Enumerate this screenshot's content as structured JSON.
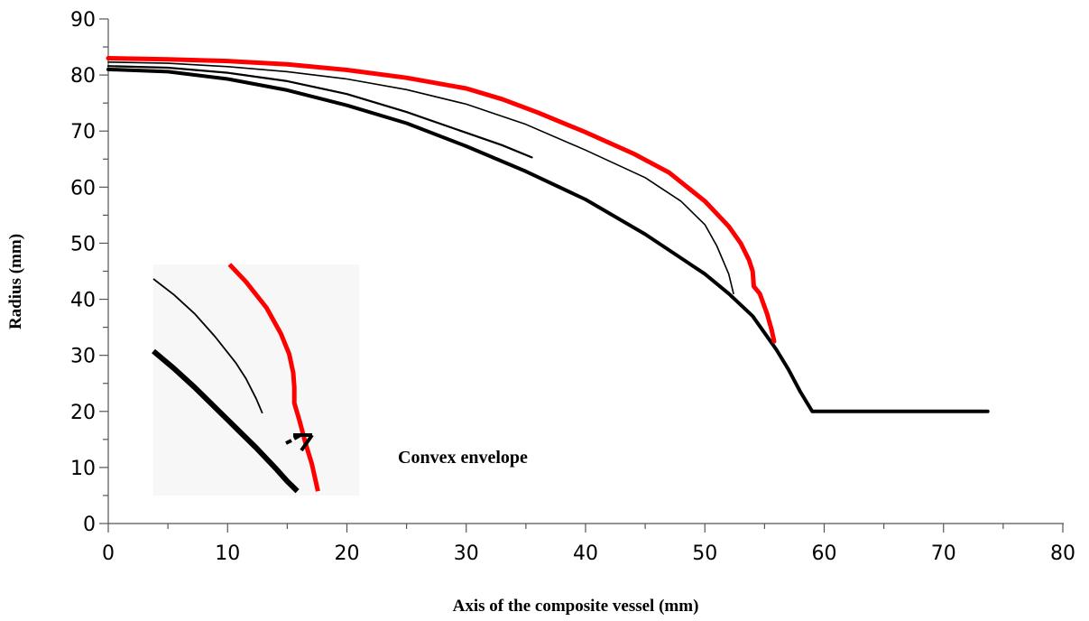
{
  "chart_data": {
    "type": "line",
    "title": "",
    "xlabel": "Axis of the composite vessel (mm)",
    "ylabel": "Radius (mm)",
    "xlim": [
      0,
      80
    ],
    "ylim": [
      0,
      90
    ],
    "x_ticks": [
      "0",
      "10",
      "20",
      "30",
      "40",
      "50",
      "60",
      "70",
      "80"
    ],
    "y_ticks": [
      "0",
      "10",
      "20",
      "30",
      "40",
      "50",
      "60",
      "70",
      "80",
      "90"
    ],
    "grid": false,
    "legend": "none",
    "annotations": [
      {
        "text": "Convex envelope",
        "x": 25,
        "y": 11.5
      }
    ],
    "series": [
      {
        "color": "#000000",
        "x": [
          0,
          5,
          10,
          15,
          20,
          25,
          30,
          35,
          40,
          45,
          50,
          52,
          54,
          56,
          57,
          58,
          59,
          62,
          66,
          70,
          73.7
        ],
        "y": [
          81,
          80.6,
          79.3,
          77.3,
          74.6,
          71.4,
          67.3,
          62.8,
          57.8,
          51.6,
          44.5,
          41,
          37,
          31,
          27.5,
          23.5,
          20,
          20,
          20,
          20,
          20
        ]
      },
      {
        "color": "#000000",
        "x": [
          0,
          5,
          10,
          15,
          20,
          25,
          30,
          33,
          35.5
        ],
        "y": [
          81.6,
          81.3,
          80.4,
          78.9,
          76.6,
          73.4,
          69.7,
          67.5,
          65.3
        ]
      },
      {
        "color": "#000000",
        "x": [
          0,
          5,
          10,
          15,
          20,
          25,
          30,
          35,
          40,
          45,
          48,
          50,
          51,
          52,
          52.4
        ],
        "y": [
          82.3,
          82.1,
          81.5,
          80.6,
          79.3,
          77.4,
          74.8,
          71.2,
          66.6,
          61.7,
          57.5,
          53.3,
          49.5,
          44.5,
          41
        ]
      },
      {
        "color": "#ff0000",
        "x": [
          0,
          5,
          10,
          15,
          20,
          25,
          30,
          33,
          36,
          40,
          44,
          47,
          50,
          52,
          53,
          53.7,
          54,
          54.1,
          54.6,
          55.2,
          55.6,
          55.8
        ],
        "y": [
          83,
          82.8,
          82.5,
          81.9,
          80.9,
          79.5,
          77.6,
          75.7,
          73.3,
          69.8,
          66,
          62.6,
          57.5,
          53,
          50,
          47,
          45,
          42.3,
          41,
          37.5,
          34.5,
          32.5
        ]
      }
    ],
    "inset": {
      "series": [
        {
          "color": "#000000",
          "x": [
            0,
            10,
            20,
            30,
            40,
            50,
            60,
            65,
            70
          ],
          "y": [
            100,
            88,
            75,
            61,
            47,
            33,
            18,
            10,
            3
          ]
        },
        {
          "color": "#000000",
          "x": [
            0,
            10,
            20,
            30,
            40,
            45,
            50,
            53
          ],
          "y": [
            150,
            139,
            126,
            110,
            92,
            81,
            67,
            57
          ]
        },
        {
          "color": "#ff0000",
          "x": [
            37,
            45,
            55,
            62,
            66,
            68,
            68.5,
            68.5,
            71,
            74,
            77,
            80
          ],
          "y": [
            160,
            148,
            130,
            112,
            98,
            85,
            75,
            64,
            52,
            36,
            22,
            3
          ]
        }
      ]
    }
  }
}
